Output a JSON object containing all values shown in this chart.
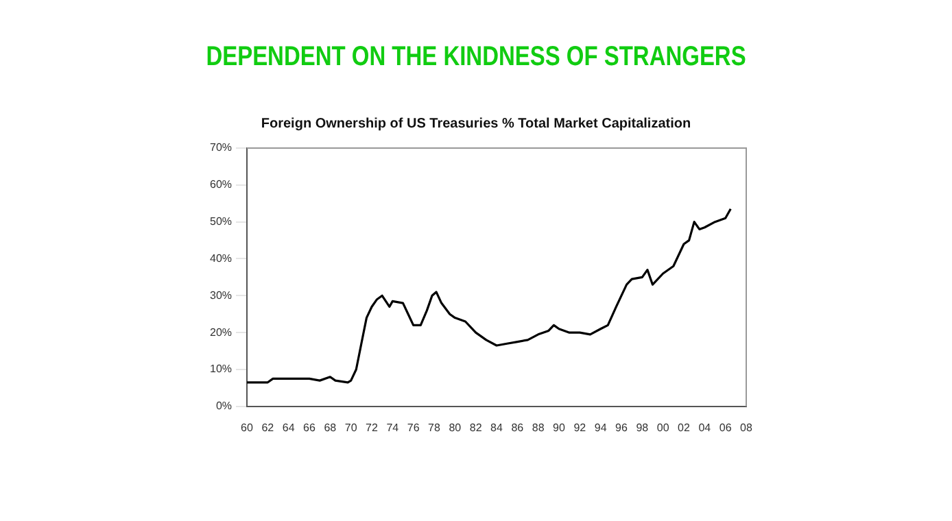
{
  "chart_data": {
    "type": "line",
    "title": "DEPENDENT ON THE KINDNESS OF STRANGERS",
    "subtitle": "Foreign Ownership of US Treasuries % Total Market Capitalization",
    "x": [
      1960,
      1962,
      1962.5,
      1964,
      1966,
      1967,
      1968,
      1968.5,
      1969.7,
      1970,
      1970.5,
      1971,
      1971.5,
      1972,
      1972.5,
      1973,
      1973.7,
      1974,
      1975,
      1975.5,
      1976,
      1976.7,
      1977.3,
      1977.8,
      1978.2,
      1978.7,
      1979.5,
      1980,
      1981,
      1982,
      1983,
      1984,
      1985,
      1986,
      1987,
      1988,
      1989,
      1989.5,
      1990,
      1991,
      1992,
      1993,
      1994,
      1994.7,
      1995.5,
      1996.5,
      1997,
      1998,
      1998.5,
      1999,
      2000,
      2001,
      2002,
      2002.5,
      2003,
      2003.5,
      2004,
      2005,
      2006,
      2006.5
    ],
    "series": [
      {
        "color": "#000000",
        "values": [
          6.5,
          6.5,
          7.5,
          7.5,
          7.5,
          7,
          8,
          7,
          6.5,
          7,
          10,
          17,
          24,
          27,
          29,
          30,
          27,
          28.5,
          28,
          25,
          22,
          22,
          26,
          30,
          31,
          28,
          25,
          24,
          23,
          20,
          18,
          16.5,
          17,
          17.5,
          18,
          19.5,
          20.5,
          22,
          21,
          20,
          20,
          19.5,
          21,
          22,
          27,
          33,
          34.5,
          35,
          37,
          33,
          36,
          38,
          44,
          45,
          50,
          48,
          48.5,
          50,
          51,
          53.5
        ]
      }
    ],
    "xlim": [
      1960,
      2008
    ],
    "xticks": [
      {
        "value": 1960,
        "label": "60"
      },
      {
        "value": 1962,
        "label": "62"
      },
      {
        "value": 1964,
        "label": "64"
      },
      {
        "value": 1966,
        "label": "66"
      },
      {
        "value": 1968,
        "label": "68"
      },
      {
        "value": 1970,
        "label": "70"
      },
      {
        "value": 1972,
        "label": "72"
      },
      {
        "value": 1974,
        "label": "74"
      },
      {
        "value": 1976,
        "label": "76"
      },
      {
        "value": 1978,
        "label": "78"
      },
      {
        "value": 1980,
        "label": "80"
      },
      {
        "value": 1982,
        "label": "82"
      },
      {
        "value": 1984,
        "label": "84"
      },
      {
        "value": 1986,
        "label": "86"
      },
      {
        "value": 1988,
        "label": "88"
      },
      {
        "value": 1990,
        "label": "90"
      },
      {
        "value": 1992,
        "label": "92"
      },
      {
        "value": 1994,
        "label": "94"
      },
      {
        "value": 1996,
        "label": "96"
      },
      {
        "value": 1998,
        "label": "98"
      },
      {
        "value": 2000,
        "label": "00"
      },
      {
        "value": 2002,
        "label": "02"
      },
      {
        "value": 2004,
        "label": "04"
      },
      {
        "value": 2006,
        "label": "06"
      },
      {
        "value": 2008,
        "label": "08"
      }
    ],
    "ylim": [
      0,
      70
    ],
    "yticks": [
      {
        "value": 0,
        "label": "0%"
      },
      {
        "value": 10,
        "label": "10%"
      },
      {
        "value": 20,
        "label": "20%"
      },
      {
        "value": 30,
        "label": "30%"
      },
      {
        "value": 40,
        "label": "40%"
      },
      {
        "value": 50,
        "label": "50%"
      },
      {
        "value": 60,
        "label": "60%"
      },
      {
        "value": 70,
        "label": "70%"
      }
    ],
    "grid": false,
    "legend": false,
    "marker": "none",
    "line_style": "solid"
  }
}
